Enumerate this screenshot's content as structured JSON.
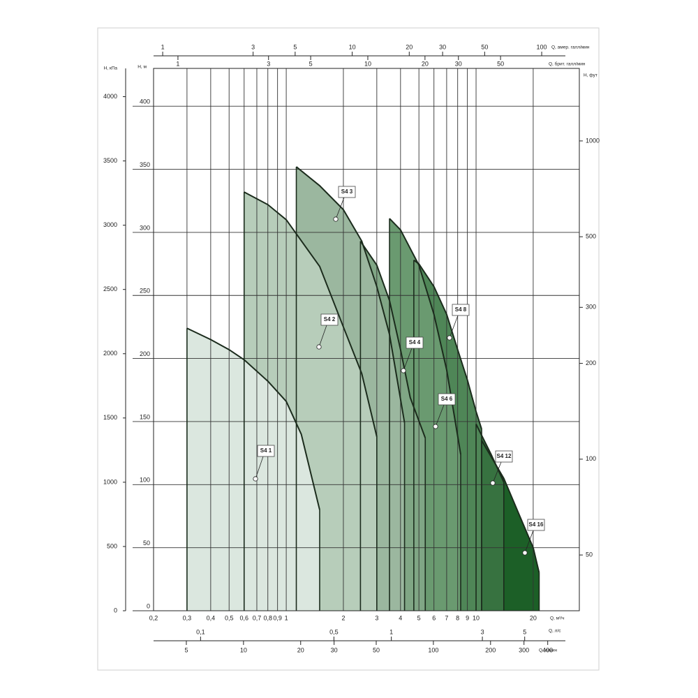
{
  "chart_data": {
    "type": "area",
    "x_scale": "log",
    "x_label": "Q, м³/ч",
    "xlim": [
      0.2,
      35
    ],
    "xticks": [
      {
        "value": 0.2,
        "label": "0,2"
      },
      {
        "value": 0.3,
        "label": "0,3"
      },
      {
        "value": 0.4,
        "label": "0,4"
      },
      {
        "value": 0.5,
        "label": "0,5"
      },
      {
        "value": 0.6,
        "label": "0,6"
      },
      {
        "value": 0.7,
        "label": "0,7"
      },
      {
        "value": 0.8,
        "label": "0,8"
      },
      {
        "value": 0.9,
        "label": "0,9"
      },
      1,
      2,
      3,
      4,
      5,
      6,
      7,
      8,
      9,
      10,
      20
    ],
    "y_label": "H, м",
    "ylim": [
      0,
      430
    ],
    "yticks": [
      0,
      50,
      100,
      150,
      200,
      250,
      300,
      350,
      400
    ],
    "grid": true,
    "kpa_axis": {
      "label": "H, кПа",
      "lim": [
        0,
        4220
      ],
      "ticks": [
        0,
        500,
        1000,
        1500,
        2000,
        2500,
        3000,
        3500,
        4000
      ]
    },
    "ft_axis": {
      "label": "H, фут",
      "scale": "log",
      "lim": [
        33.4,
        1690
      ],
      "ticks": [
        50,
        100,
        200,
        300,
        500,
        1000
      ]
    },
    "secondary_x_axes": [
      {
        "label": "Q, амер. галл/мин",
        "scale": "log",
        "lim": [
          0.895,
          158
        ],
        "ticks": [
          1,
          3,
          5,
          10,
          20,
          30,
          50,
          100
        ]
      },
      {
        "label": "Q, брит. галл/мин",
        "scale": "log",
        "lim": [
          0.744,
          130
        ],
        "ticks": [
          1,
          3,
          5,
          10,
          20,
          30,
          50
        ]
      },
      {
        "label": "Q, л/с",
        "scale": "log",
        "lim": [
          0.0567,
          9.67
        ],
        "ticks": [
          {
            "value": 0.1,
            "label": "0,1"
          },
          {
            "value": 0.5,
            "label": "0,5"
          },
          1,
          3,
          5
        ]
      },
      {
        "label": "Q, л/мин",
        "scale": "log",
        "lim": [
          3.36,
          587
        ],
        "ticks": [
          5,
          10,
          20,
          30,
          50,
          100,
          200,
          300,
          400
        ]
      }
    ],
    "series": [
      {
        "name": "S4 1",
        "color": "#dbe7df",
        "x": [
          0.3,
          0.4,
          0.5,
          0.6,
          0.8,
          1.0,
          1.2,
          1.5
        ],
        "values": [
          224,
          215,
          207,
          199,
          182,
          166,
          140,
          80
        ]
      },
      {
        "name": "S4 2",
        "color": "#b7cdba",
        "x": [
          0.6,
          0.8,
          1.0,
          1.5,
          2,
          2.5,
          3
        ],
        "values": [
          332,
          322,
          310,
          273,
          225,
          188,
          138
        ]
      },
      {
        "name": "S4 3",
        "color": "#9bb79f",
        "x": [
          1.13,
          1.5,
          2,
          2.5,
          3,
          3.5,
          4.2
        ],
        "values": [
          352,
          337,
          318,
          293,
          257,
          219,
          149
        ]
      },
      {
        "name": "S4 4",
        "color": "#80a685",
        "x": [
          2.46,
          3,
          3.5,
          4,
          4.5,
          5.4
        ],
        "values": [
          293,
          274,
          246,
          207,
          169,
          137
        ]
      },
      {
        "name": "S4 6",
        "color": "#6a9a70",
        "x": [
          3.5,
          4,
          5,
          6,
          7,
          8.3
        ],
        "values": [
          311,
          302,
          274,
          235,
          191,
          124
        ]
      },
      {
        "name": "S4 8",
        "color": "#4f8657",
        "x": [
          4.7,
          5,
          6,
          7,
          8,
          9,
          10,
          10.7
        ],
        "values": [
          278,
          275,
          257,
          235,
          207,
          183,
          158,
          144
        ]
      },
      {
        "name": "S4 12",
        "color": "#377240",
        "x": [
          10,
          12,
          14
        ],
        "values": [
          148,
          124,
          102
        ]
      },
      {
        "name": "S4 16",
        "color": "#1c5f27",
        "x": [
          10.7,
          14,
          17,
          20,
          21.5
        ],
        "values": [
          135,
          105,
          75,
          50,
          30
        ]
      }
    ]
  }
}
